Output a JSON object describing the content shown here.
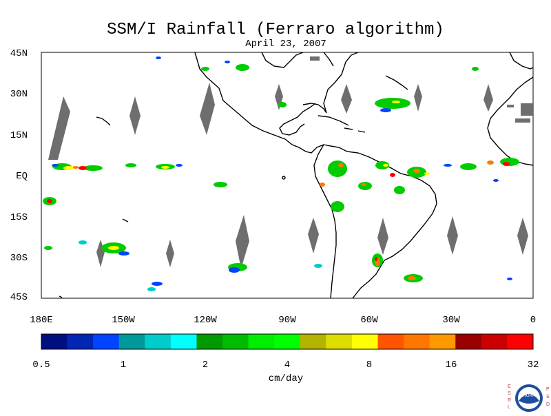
{
  "title": "SSM/I Rainfall (Ferraro algorithm)",
  "date": "April 23, 2007",
  "lat_labels": [
    "45N",
    "30N",
    "15N",
    "EQ",
    "15S",
    "30S",
    "45S"
  ],
  "lon_labels": [
    "180E",
    "150W",
    "120W",
    "90W",
    "60W",
    "30W",
    "0"
  ],
  "colorbar": {
    "tick_labels": [
      "0.5",
      "1",
      "2",
      "4",
      "8",
      "16",
      "32"
    ],
    "units": "cm/day",
    "colors": [
      "#000f80",
      "#0026b3",
      "#0044ff",
      "#009999",
      "#00cccc",
      "#00ffff",
      "#009900",
      "#00bb00",
      "#00ee00",
      "#00ff00",
      "#b3b300",
      "#dddd00",
      "#ffff00",
      "#ff5500",
      "#ff7700",
      "#ff9900",
      "#990000",
      "#cc0000",
      "#ff0000"
    ]
  },
  "logo": {
    "text": "NOAA",
    "letters_left": [
      "E",
      "S",
      "R",
      "L"
    ],
    "letters_right": [
      "P",
      "S",
      "D"
    ]
  }
}
